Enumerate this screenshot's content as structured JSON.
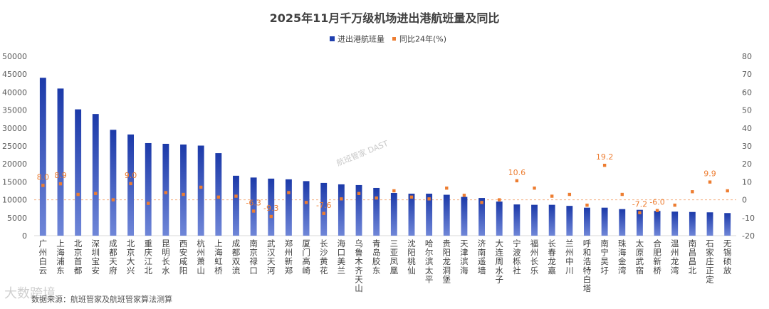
{
  "chart_data": {
    "type": "bar",
    "title": "2025年11月千万级机场进出港航班量及同比",
    "legend": {
      "position": "top-right"
    },
    "source_note": "数据来源：航班管家及航班管家算法测算",
    "watermark": "航班管家 DAST",
    "logo_text": "大数跨境",
    "categories": [
      "广州白云",
      "上海浦东",
      "北京首都",
      "深圳宝安",
      "成都天府",
      "北京大兴",
      "重庆江北",
      "昆明长水",
      "西安咸阳",
      "杭州萧山",
      "上海虹桥",
      "成都双流",
      "南京禄口",
      "武汉天河",
      "郑州新郑",
      "厦门高崎",
      "长沙黄花",
      "海口美兰",
      "乌鲁木齐天山",
      "青岛胶东",
      "三亚凤凰",
      "沈阳桃仙",
      "哈尔滨太平",
      "贵阳龙洞堡",
      "天津滨海",
      "济南遥墙",
      "大连周水子",
      "宁波栎社",
      "福州长乐",
      "长春龙嘉",
      "兰州中川",
      "呼和浩特白塔",
      "南宁吴圩",
      "珠海金湾",
      "太原武宿",
      "合肥新桥",
      "温州龙湾",
      "南昌昌北",
      "石家庄正定",
      "无锡硕放"
    ],
    "series": [
      {
        "name": "进出港航班量",
        "axis": "left",
        "color": "#1f3fae",
        "values": [
          44000,
          41000,
          35200,
          33900,
          29500,
          28200,
          25800,
          25600,
          25400,
          25100,
          23000,
          16700,
          16200,
          15900,
          15700,
          15200,
          14700,
          14300,
          14100,
          13300,
          11900,
          11700,
          11700,
          11400,
          10800,
          10500,
          9500,
          8700,
          8600,
          8600,
          8300,
          7800,
          7800,
          7400,
          7200,
          6900,
          6700,
          6600,
          6500,
          6300
        ]
      },
      {
        "name": "同比24年(%)",
        "axis": "right",
        "color": "#ed7d31",
        "values": [
          8.0,
          8.9,
          3.0,
          3.5,
          0.0,
          9.0,
          -2.0,
          4.0,
          3.0,
          7.0,
          1.5,
          2.0,
          -6.3,
          -9.3,
          4.0,
          -1.5,
          -7.6,
          0.5,
          3.5,
          1.0,
          5.0,
          1.5,
          0.5,
          6.5,
          2.5,
          -1.5,
          0.0,
          10.6,
          6.5,
          2.0,
          3.0,
          -3.0,
          19.2,
          3.0,
          -7.2,
          -6.0,
          -3.0,
          4.5,
          9.9,
          5.0
        ]
      }
    ],
    "data_labels": [
      {
        "index": 0,
        "text": "8.0"
      },
      {
        "index": 1,
        "text": "8.9"
      },
      {
        "index": 5,
        "text": "9.0"
      },
      {
        "index": 12,
        "text": "-6.3"
      },
      {
        "index": 13,
        "text": "-9.3"
      },
      {
        "index": 16,
        "text": "-7.6"
      },
      {
        "index": 27,
        "text": "10.6"
      },
      {
        "index": 32,
        "text": "19.2"
      },
      {
        "index": 34,
        "text": "-7.2"
      },
      {
        "index": 35,
        "text": "-6.0"
      },
      {
        "index": 38,
        "text": "9.9"
      }
    ],
    "y_left": {
      "min": 0,
      "max": 50000,
      "step": 5000,
      "ticks": [
        "0",
        "5000",
        "10000",
        "15000",
        "20000",
        "25000",
        "30000",
        "35000",
        "40000",
        "45000",
        "50000"
      ]
    },
    "y_right": {
      "min": -20,
      "max": 80,
      "step": 10,
      "ticks": [
        "-20",
        "-10",
        "0",
        "10",
        "20",
        "30",
        "40",
        "50",
        "60",
        "70",
        "80"
      ]
    },
    "grid": false
  }
}
